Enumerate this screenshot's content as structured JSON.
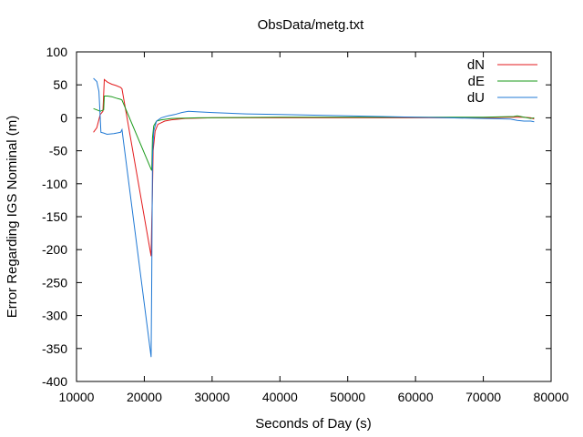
{
  "chart_data": {
    "type": "line",
    "title": "ObsData/metg.txt",
    "xlabel": "Seconds of Day (s)",
    "ylabel": "Error Regarding IGS Nominal (m)",
    "xlim": [
      10000,
      80000
    ],
    "ylim": [
      -400,
      100
    ],
    "xticks": [
      "10000",
      "20000",
      "30000",
      "40000",
      "50000",
      "60000",
      "70000",
      "80000"
    ],
    "yticks": [
      "100",
      "50",
      "0",
      "-50",
      "-100",
      "-150",
      "-200",
      "-250",
      "-300",
      "-350",
      "-400"
    ],
    "xtick_values": [
      10000,
      20000,
      30000,
      40000,
      50000,
      60000,
      70000,
      80000
    ],
    "ytick_values": [
      100,
      50,
      0,
      -50,
      -100,
      -150,
      -200,
      -250,
      -300,
      -350,
      -400
    ],
    "grid": false,
    "legend_position": "top-right",
    "series": [
      {
        "name": "dN",
        "color": "#e31a1c",
        "points": [
          [
            12500,
            -22
          ],
          [
            13000,
            -15
          ],
          [
            13500,
            5
          ],
          [
            13900,
            10
          ],
          [
            14100,
            58
          ],
          [
            14600,
            54
          ],
          [
            15200,
            51
          ],
          [
            15800,
            49
          ],
          [
            16500,
            46
          ],
          [
            16700,
            44
          ],
          [
            21000,
            -210
          ],
          [
            21100,
            -157
          ],
          [
            21200,
            -110
          ],
          [
            21300,
            -50
          ],
          [
            21600,
            -20
          ],
          [
            22000,
            -10
          ],
          [
            23000,
            -5
          ],
          [
            24000,
            -3
          ],
          [
            26000,
            -1
          ],
          [
            30000,
            0
          ],
          [
            40000,
            0
          ],
          [
            51500,
            0
          ],
          [
            56000,
            0
          ],
          [
            60000,
            0
          ],
          [
            70000,
            0
          ],
          [
            74000,
            1
          ],
          [
            75000,
            1
          ],
          [
            76000,
            1
          ],
          [
            77000,
            0
          ],
          [
            77500,
            -2
          ]
        ]
      },
      {
        "name": "dE",
        "color": "#1a9a1a",
        "points": [
          [
            12500,
            14
          ],
          [
            13000,
            12
          ],
          [
            13500,
            10
          ],
          [
            14000,
            12
          ],
          [
            14100,
            33
          ],
          [
            14600,
            33
          ],
          [
            15200,
            32
          ],
          [
            15800,
            30
          ],
          [
            16500,
            28
          ],
          [
            16700,
            27
          ],
          [
            21000,
            -78
          ],
          [
            21100,
            -80
          ],
          [
            21200,
            -30
          ],
          [
            21400,
            -12
          ],
          [
            21800,
            -5
          ],
          [
            22500,
            -3
          ],
          [
            24000,
            -1
          ],
          [
            28000,
            0
          ],
          [
            40000,
            1
          ],
          [
            50000,
            1
          ],
          [
            60000,
            1
          ],
          [
            70000,
            1
          ],
          [
            74500,
            2
          ],
          [
            75000,
            3
          ],
          [
            76000,
            1
          ],
          [
            77000,
            -1
          ],
          [
            77500,
            0
          ]
        ]
      },
      {
        "name": "dU",
        "color": "#1f78d4",
        "points": [
          [
            12500,
            60
          ],
          [
            13000,
            55
          ],
          [
            13300,
            40
          ],
          [
            13600,
            -22
          ],
          [
            14000,
            -23
          ],
          [
            14500,
            -25
          ],
          [
            15500,
            -24
          ],
          [
            16500,
            -22
          ],
          [
            16700,
            -18
          ],
          [
            21000,
            -363
          ],
          [
            21100,
            -240
          ],
          [
            21200,
            -60
          ],
          [
            21400,
            -20
          ],
          [
            21800,
            -5
          ],
          [
            22500,
            0
          ],
          [
            23500,
            3
          ],
          [
            24500,
            5
          ],
          [
            25500,
            8
          ],
          [
            26500,
            10
          ],
          [
            28000,
            9
          ],
          [
            30000,
            8
          ],
          [
            35000,
            6
          ],
          [
            40000,
            5
          ],
          [
            45000,
            4
          ],
          [
            50000,
            3
          ],
          [
            55000,
            2
          ],
          [
            60000,
            1
          ],
          [
            65000,
            0
          ],
          [
            70000,
            -1
          ],
          [
            74000,
            -2
          ],
          [
            75000,
            -4
          ],
          [
            76000,
            -5
          ],
          [
            77000,
            -5
          ],
          [
            77500,
            -6
          ]
        ]
      }
    ]
  }
}
